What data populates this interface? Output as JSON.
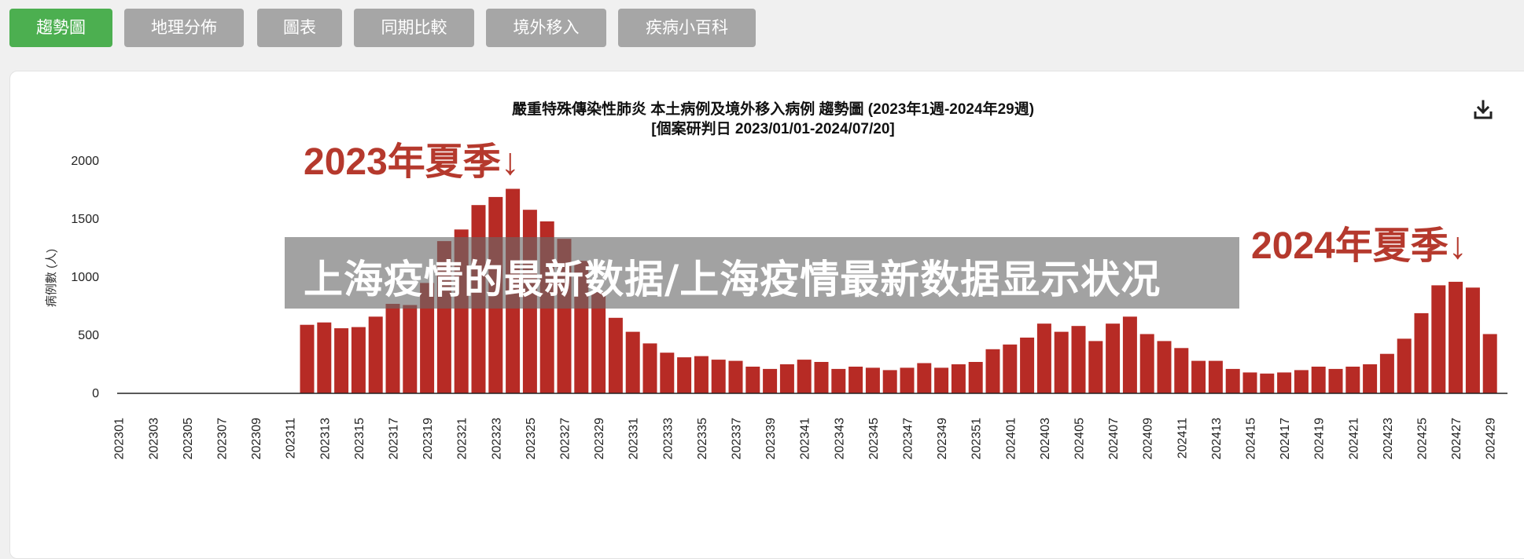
{
  "tabs": [
    {
      "label": "趨勢圖",
      "active": true
    },
    {
      "label": "地理分佈",
      "active": false
    },
    {
      "label": "圖表",
      "active": false
    },
    {
      "label": "同期比較",
      "active": false
    },
    {
      "label": "境外移入",
      "active": false
    },
    {
      "label": "疾病小百科",
      "active": false
    }
  ],
  "download": {
    "icon": "download-icon"
  },
  "overlay": {
    "text": "上海疫情的最新数据/上海疫情最新数据显示状况"
  },
  "colors": {
    "active_tab": "#4caf50",
    "inactive_tab": "#a6a6a6",
    "bar": "#b72b25",
    "annotation": "#b5392d"
  },
  "chart_data": {
    "type": "bar",
    "title": "嚴重特殊傳染性肺炎 本土病例及境外移入病例 趨勢圖 (2023年1週-2024年29週)",
    "subtitle": "[個案研判日 2023/01/01-2024/07/20]",
    "ylabel": "病例數 (人)",
    "xlabel": "",
    "ylim": [
      0,
      2000
    ],
    "yticks": [
      0,
      500,
      1000,
      1500,
      2000
    ],
    "grid": false,
    "annotations": [
      "2023年夏季↓",
      "2024年夏季↓"
    ],
    "categories": [
      "202301",
      "202302",
      "202303",
      "202304",
      "202305",
      "202306",
      "202307",
      "202308",
      "202309",
      "202310",
      "202311",
      "202312",
      "202313",
      "202314",
      "202315",
      "202316",
      "202317",
      "202318",
      "202319",
      "202320",
      "202321",
      "202322",
      "202323",
      "202324",
      "202325",
      "202326",
      "202327",
      "202328",
      "202329",
      "202330",
      "202331",
      "202332",
      "202333",
      "202334",
      "202335",
      "202336",
      "202337",
      "202338",
      "202339",
      "202340",
      "202341",
      "202342",
      "202343",
      "202344",
      "202345",
      "202346",
      "202347",
      "202348",
      "202349",
      "202350",
      "202351",
      "202352",
      "202401",
      "202402",
      "202403",
      "202404",
      "202405",
      "202406",
      "202407",
      "202408",
      "202409",
      "202410",
      "202411",
      "202412",
      "202413",
      "202414",
      "202415",
      "202416",
      "202417",
      "202418",
      "202419",
      "202420",
      "202421",
      "202422",
      "202423",
      "202424",
      "202425",
      "202426",
      "202427",
      "202428",
      "202429"
    ],
    "tick_labels": [
      "202301",
      "202303",
      "202305",
      "202307",
      "202309",
      "202311",
      "202313",
      "202315",
      "202317",
      "202319",
      "202321",
      "202323",
      "202325",
      "202327",
      "202329",
      "202331",
      "202333",
      "202335",
      "202337",
      "202339",
      "202341",
      "202343",
      "202345",
      "202347",
      "202349",
      "202351",
      "202401",
      "202403",
      "202405",
      "202407",
      "202409",
      "202411",
      "202413",
      "202415",
      "202417",
      "202419",
      "202421",
      "202423",
      "202425",
      "202427",
      "202429"
    ],
    "values": [
      0,
      0,
      0,
      0,
      0,
      0,
      0,
      0,
      0,
      0,
      0,
      590,
      610,
      560,
      570,
      660,
      770,
      760,
      950,
      1310,
      1410,
      1620,
      1690,
      1760,
      1580,
      1480,
      1330,
      1140,
      870,
      650,
      530,
      430,
      350,
      310,
      320,
      290,
      280,
      230,
      210,
      250,
      290,
      270,
      210,
      230,
      220,
      200,
      220,
      260,
      220,
      250,
      270,
      380,
      420,
      480,
      600,
      530,
      580,
      450,
      600,
      660,
      510,
      450,
      390,
      280,
      280,
      210,
      180,
      170,
      180,
      200,
      230,
      210,
      230,
      250,
      340,
      470,
      690,
      930,
      960,
      910,
      510
    ]
  }
}
